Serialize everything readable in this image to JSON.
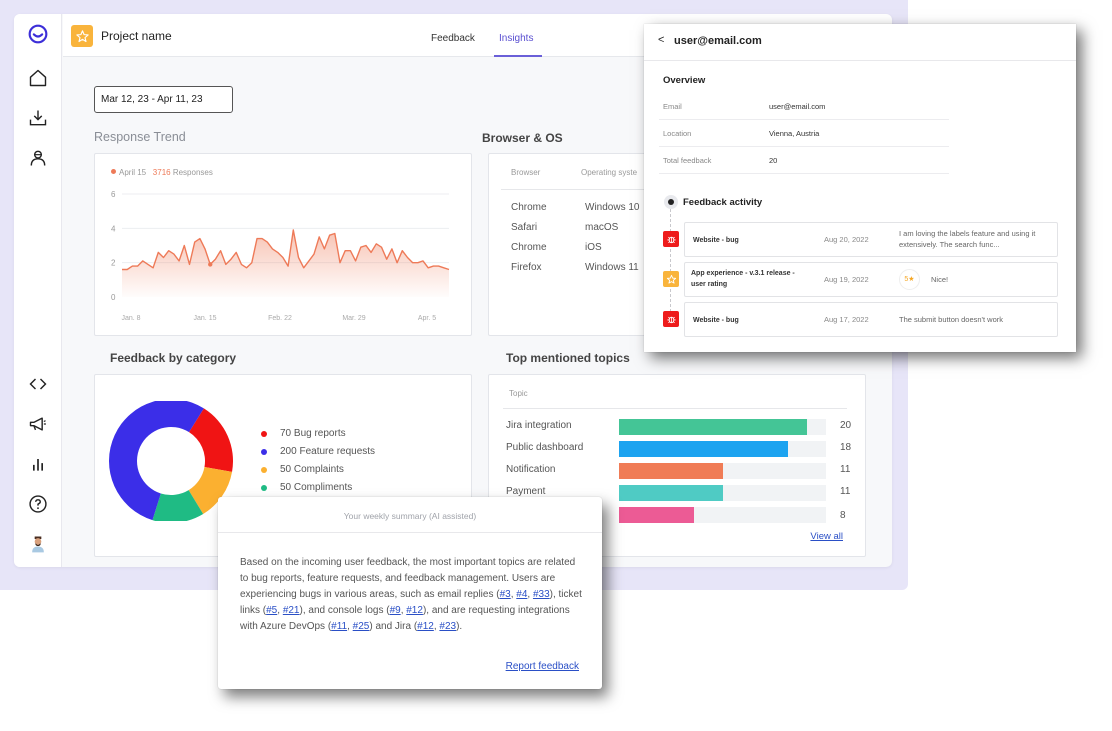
{
  "header": {
    "project_name": "Project name",
    "tabs": [
      {
        "label": "Feedback",
        "active": false
      },
      {
        "label": "Insights",
        "active": true
      }
    ]
  },
  "sidebar": {
    "items": [
      {
        "name": "logo",
        "icon": "logo-icon"
      },
      {
        "name": "home",
        "icon": "home-icon"
      },
      {
        "name": "inbox",
        "icon": "download-icon"
      },
      {
        "name": "users",
        "icon": "user-icon"
      },
      {
        "name": "developers",
        "icon": "code-icon"
      },
      {
        "name": "announcements",
        "icon": "megaphone-icon"
      },
      {
        "name": "analytics",
        "icon": "bar-chart-icon"
      },
      {
        "name": "help",
        "icon": "help-icon"
      },
      {
        "name": "profile",
        "icon": "avatar"
      }
    ]
  },
  "filters": {
    "date_range": "Mar 12, 23 - Apr 11, 23"
  },
  "response_trend": {
    "title": "Response Trend",
    "legend_date": "April 15",
    "legend_count": "3716",
    "legend_label": "Responses",
    "accent": "#ee7a58"
  },
  "browser_os": {
    "title": "Browser & OS",
    "columns": [
      "Browser",
      "Operating syste"
    ],
    "rows": [
      [
        "Chrome",
        "Windows 10"
      ],
      [
        "Safari",
        "macOS"
      ],
      [
        "Chrome",
        "iOS"
      ],
      [
        "Firefox",
        "Windows 11"
      ]
    ]
  },
  "feedback_by_category": {
    "title": "Feedback by category",
    "items": [
      {
        "label": "70 Bug reports",
        "value": 70,
        "color": "#f01414"
      },
      {
        "label": "200 Feature requests",
        "value": 200,
        "color": "#3b2ee8"
      },
      {
        "label": "50 Complaints",
        "value": 50,
        "color": "#fbb030"
      },
      {
        "label": "50 Compliments",
        "value": 50,
        "color": "#1fbb84"
      }
    ]
  },
  "top_topics": {
    "title": "Top mentioned topics",
    "column": "Topic",
    "items": [
      {
        "label": "Jira integration",
        "value": 20,
        "color": "#44c596"
      },
      {
        "label": "Public dashboard",
        "value": 18,
        "color": "#1ca3f0"
      },
      {
        "label": "Notification",
        "value": 11,
        "color": "#f07c56"
      },
      {
        "label": "Payment",
        "value": 11,
        "color": "#4fcbc4"
      },
      {
        "label": "",
        "value": 8,
        "color": "#ec5b95"
      }
    ],
    "view_all": "View all"
  },
  "user_panel": {
    "back_label": "<",
    "title": "user@email.com",
    "overview_title": "Overview",
    "fields": [
      {
        "label": "Email",
        "value": "user@email.com"
      },
      {
        "label": "Location",
        "value": "Vienna, Austria"
      },
      {
        "label": "Total feedback",
        "value": "20"
      }
    ],
    "activity_title": "Feedback activity",
    "activity": [
      {
        "type": "bug",
        "title": "Website - bug",
        "date": "Aug 20, 2022",
        "text": "I am loving the labels feature and using it extensively. The search func...",
        "badge_color": "#ee1c1c"
      },
      {
        "type": "rating",
        "title": "App experience - v.3.1 release - user rating",
        "date": "Aug 19, 2022",
        "rating": "5★",
        "text": "Nice!",
        "badge_color": "#f9b43c"
      },
      {
        "type": "bug",
        "title": "Website - bug",
        "date": "Aug 17, 2022",
        "text": "The submit button doesn't work",
        "badge_color": "#ee1c1c"
      }
    ]
  },
  "weekly_summary": {
    "title": "Your weekly summary (AI assisted)",
    "text_1": "Based on the incoming user feedback, the most important topics are related to bug reports, feature requests, and feedback management. Users are experiencing bugs in various areas, such as email replies (",
    "links": [
      "#3",
      "#4",
      "#33",
      "#5",
      "#21",
      "#9",
      "#12",
      "#11",
      "#25",
      "#12",
      "#23"
    ],
    "t_sep": ", ",
    "t_ticket": "), ticket links (",
    "t_console": "), and console logs (",
    "t_azure": "), and are requesting integrations with Azure DevOps (",
    "t_jira": ") and Jira (",
    "t_end": ").",
    "report_link": "Report feedback"
  },
  "chart_data": [
    {
      "type": "area",
      "title": "Response Trend",
      "x_ticks": [
        "Jan. 8",
        "Jan. 15",
        "Feb. 22",
        "Mar. 29",
        "Apr. 5"
      ],
      "y_ticks": [
        0,
        2,
        4,
        6
      ],
      "ylim": [
        0,
        6
      ],
      "values": [
        1.6,
        1.6,
        1.8,
        1.8,
        2.1,
        1.9,
        1.7,
        2.6,
        2.3,
        2.7,
        2.5,
        2.1,
        3.0,
        1.9,
        3.2,
        3.4,
        2.8,
        1.9,
        2.2,
        2.7,
        1.9,
        2.2,
        2.6,
        1.9,
        1.7,
        2.0,
        3.4,
        3.4,
        3.2,
        2.8,
        2.6,
        2.3,
        1.8,
        3.9,
        2.3,
        1.7,
        2.1,
        2.5,
        3.5,
        2.8,
        3.6,
        3.7,
        2.0,
        2.7,
        2.7,
        2.1,
        2.9,
        3.0,
        2.6,
        3.1,
        2.9,
        2.2,
        2.8,
        2.0,
        2.7,
        2.3,
        2.0,
        2.0,
        2.1,
        1.7,
        1.8,
        1.8,
        1.7,
        1.6
      ],
      "highlight": {
        "label": "April 15",
        "value": 3716,
        "unit": "Responses"
      },
      "grid": true
    },
    {
      "type": "pie",
      "title": "Feedback by category",
      "categories": [
        "Bug reports",
        "Feature requests",
        "Complaints",
        "Compliments"
      ],
      "values": [
        70,
        200,
        50,
        50
      ]
    },
    {
      "type": "bar",
      "title": "Top mentioned topics",
      "categories": [
        "Jira integration",
        "Public dashboard",
        "Notification",
        "Payment",
        ""
      ],
      "values": [
        20,
        18,
        11,
        11,
        8
      ]
    }
  ]
}
